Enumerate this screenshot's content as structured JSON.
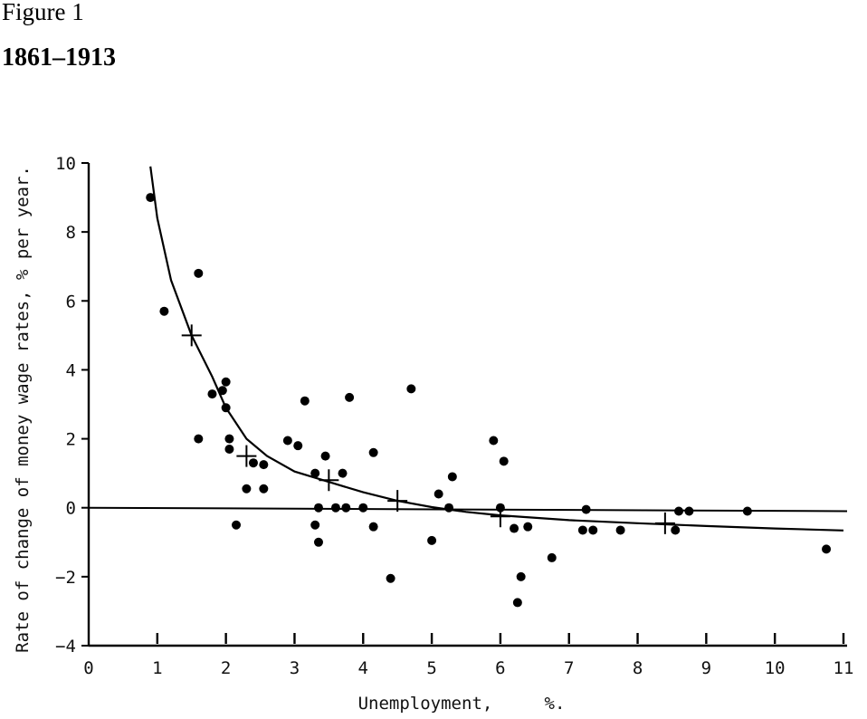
{
  "figure": {
    "label": "Figure 1",
    "period": "1861–1913"
  },
  "chart_data": {
    "type": "scatter",
    "xlabel": "Unemployment,     %.",
    "ylabel": "Rate of change of money wage rates, % per year.",
    "xlim": [
      0,
      11
    ],
    "ylim": [
      -4,
      10
    ],
    "x_ticks": [
      0,
      1,
      2,
      3,
      4,
      5,
      6,
      7,
      8,
      9,
      10,
      11
    ],
    "y_ticks": [
      -4,
      -2,
      0,
      2,
      4,
      6,
      8,
      10
    ],
    "points": [
      {
        "x": 0.9,
        "y": 9.0
      },
      {
        "x": 1.1,
        "y": 5.7
      },
      {
        "x": 1.6,
        "y": 6.8
      },
      {
        "x": 1.6,
        "y": 2.0
      },
      {
        "x": 1.8,
        "y": 3.3
      },
      {
        "x": 1.95,
        "y": 3.4
      },
      {
        "x": 2.0,
        "y": 3.65
      },
      {
        "x": 2.0,
        "y": 2.9
      },
      {
        "x": 2.05,
        "y": 2.0
      },
      {
        "x": 2.05,
        "y": 1.7
      },
      {
        "x": 2.15,
        "y": -0.5
      },
      {
        "x": 2.3,
        "y": 0.55
      },
      {
        "x": 2.4,
        "y": 1.3
      },
      {
        "x": 2.55,
        "y": 1.25
      },
      {
        "x": 2.55,
        "y": 0.55
      },
      {
        "x": 2.9,
        "y": 1.95
      },
      {
        "x": 3.05,
        "y": 1.8
      },
      {
        "x": 3.15,
        "y": 3.1
      },
      {
        "x": 3.3,
        "y": 1.0
      },
      {
        "x": 3.3,
        "y": -0.5
      },
      {
        "x": 3.35,
        "y": -1.0
      },
      {
        "x": 3.35,
        "y": 0.0
      },
      {
        "x": 3.45,
        "y": 1.5
      },
      {
        "x": 3.6,
        "y": 0.0
      },
      {
        "x": 3.7,
        "y": 1.0
      },
      {
        "x": 3.75,
        "y": 0.0
      },
      {
        "x": 3.8,
        "y": 3.2
      },
      {
        "x": 4.0,
        "y": 0.0
      },
      {
        "x": 4.15,
        "y": 1.6
      },
      {
        "x": 4.15,
        "y": -0.55
      },
      {
        "x": 4.4,
        "y": -2.05
      },
      {
        "x": 4.7,
        "y": 3.45
      },
      {
        "x": 5.0,
        "y": -0.95
      },
      {
        "x": 5.1,
        "y": 0.4
      },
      {
        "x": 5.25,
        "y": 0.0
      },
      {
        "x": 5.3,
        "y": 0.9
      },
      {
        "x": 5.9,
        "y": 1.95
      },
      {
        "x": 6.0,
        "y": 0.0
      },
      {
        "x": 6.05,
        "y": 1.35
      },
      {
        "x": 6.2,
        "y": -0.6
      },
      {
        "x": 6.25,
        "y": -2.75
      },
      {
        "x": 6.3,
        "y": -2.0
      },
      {
        "x": 6.4,
        "y": -0.55
      },
      {
        "x": 6.75,
        "y": -1.45
      },
      {
        "x": 7.2,
        "y": -0.65
      },
      {
        "x": 7.25,
        "y": -0.05
      },
      {
        "x": 7.35,
        "y": -0.65
      },
      {
        "x": 7.75,
        "y": -0.65
      },
      {
        "x": 8.55,
        "y": -0.65
      },
      {
        "x": 8.6,
        "y": -0.1
      },
      {
        "x": 8.75,
        "y": -0.1
      },
      {
        "x": 9.6,
        "y": -0.1
      },
      {
        "x": 10.75,
        "y": -1.2
      }
    ],
    "crosses": [
      {
        "x": 1.5,
        "y": 5.0
      },
      {
        "x": 2.3,
        "y": 1.5
      },
      {
        "x": 3.5,
        "y": 0.8
      },
      {
        "x": 4.5,
        "y": 0.2
      },
      {
        "x": 6.0,
        "y": -0.25
      },
      {
        "x": 8.4,
        "y": -0.45
      }
    ],
    "curve": [
      {
        "x": 0.9,
        "y": 9.9
      },
      {
        "x": 1.0,
        "y": 8.4
      },
      {
        "x": 1.2,
        "y": 6.6
      },
      {
        "x": 1.5,
        "y": 5.0
      },
      {
        "x": 1.8,
        "y": 3.8
      },
      {
        "x": 2.0,
        "y": 2.9
      },
      {
        "x": 2.3,
        "y": 2.0
      },
      {
        "x": 2.6,
        "y": 1.5
      },
      {
        "x": 3.0,
        "y": 1.05
      },
      {
        "x": 3.5,
        "y": 0.75
      },
      {
        "x": 4.0,
        "y": 0.45
      },
      {
        "x": 4.5,
        "y": 0.2
      },
      {
        "x": 5.0,
        "y": 0.02
      },
      {
        "x": 5.5,
        "y": -0.12
      },
      {
        "x": 6.0,
        "y": -0.22
      },
      {
        "x": 7.0,
        "y": -0.36
      },
      {
        "x": 8.0,
        "y": -0.45
      },
      {
        "x": 9.0,
        "y": -0.53
      },
      {
        "x": 10.0,
        "y": -0.6
      },
      {
        "x": 11.0,
        "y": -0.66
      }
    ],
    "grid": false
  }
}
